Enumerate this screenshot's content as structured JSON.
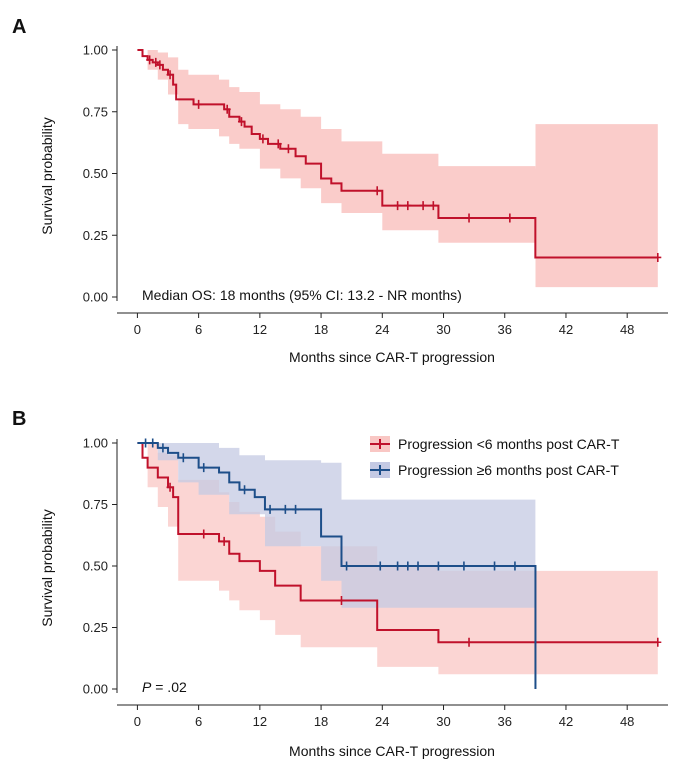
{
  "colors": {
    "red": "#c0112b",
    "red_ci": "#f9c7c4",
    "blue": "#1d4e89",
    "blue_ci": "#c4c9e3",
    "axis": "#222222"
  },
  "chart_data": [
    {
      "panel": "A",
      "type": "line",
      "xlabel": "Months since CAR-T progression",
      "ylabel": "Survival probability",
      "xlim": [
        -2,
        52
      ],
      "ylim": [
        0,
        1
      ],
      "xticks": [
        0,
        6,
        12,
        18,
        24,
        30,
        36,
        42,
        48
      ],
      "yticks": [
        0.0,
        0.25,
        0.5,
        0.75,
        1.0
      ],
      "ytick_labels": [
        "0.00",
        "0.25",
        "0.50",
        "0.75",
        "1.00"
      ],
      "annotation": "Median OS: 18 months (95% CI: 13.2 - NR months)",
      "series": [
        {
          "color": "red",
          "steps": [
            [
              0,
              1.0
            ],
            [
              0.5,
              0.975
            ],
            [
              1.0,
              0.96
            ],
            [
              1.5,
              0.95
            ],
            [
              2.0,
              0.94
            ],
            [
              2.5,
              0.92
            ],
            [
              3.0,
              0.9
            ],
            [
              3.5,
              0.86
            ],
            [
              3.8,
              0.8
            ],
            [
              5.5,
              0.78
            ],
            [
              8.5,
              0.76
            ],
            [
              9.0,
              0.73
            ],
            [
              10.0,
              0.71
            ],
            [
              10.5,
              0.69
            ],
            [
              11.2,
              0.66
            ],
            [
              12.0,
              0.64
            ],
            [
              12.8,
              0.62
            ],
            [
              14.0,
              0.6
            ],
            [
              15.5,
              0.57
            ],
            [
              16.5,
              0.54
            ],
            [
              18.0,
              0.48
            ],
            [
              19.0,
              0.46
            ],
            [
              20.0,
              0.43
            ],
            [
              24.0,
              0.37
            ],
            [
              29.5,
              0.32
            ],
            [
              39.0,
              0.16
            ],
            [
              51.0,
              0.16
            ]
          ],
          "ci_upper": [
            [
              0,
              1.0
            ],
            [
              1,
              1.0
            ],
            [
              2,
              0.99
            ],
            [
              3,
              0.97
            ],
            [
              4,
              0.92
            ],
            [
              5,
              0.9
            ],
            [
              8,
              0.88
            ],
            [
              9,
              0.85
            ],
            [
              10,
              0.83
            ],
            [
              12,
              0.78
            ],
            [
              14,
              0.76
            ],
            [
              16,
              0.73
            ],
            [
              18,
              0.68
            ],
            [
              20,
              0.63
            ],
            [
              24,
              0.58
            ],
            [
              29.5,
              0.53
            ],
            [
              39,
              0.52
            ],
            [
              39.01,
              0.7
            ],
            [
              51,
              0.7
            ]
          ],
          "ci_lower": [
            [
              0,
              1.0
            ],
            [
              1,
              0.92
            ],
            [
              2,
              0.88
            ],
            [
              3,
              0.82
            ],
            [
              4,
              0.7
            ],
            [
              5,
              0.68
            ],
            [
              8,
              0.65
            ],
            [
              9,
              0.62
            ],
            [
              10,
              0.6
            ],
            [
              12,
              0.52
            ],
            [
              14,
              0.48
            ],
            [
              16,
              0.44
            ],
            [
              18,
              0.38
            ],
            [
              20,
              0.34
            ],
            [
              24,
              0.27
            ],
            [
              29.5,
              0.22
            ],
            [
              39,
              0.21
            ],
            [
              39.01,
              0.04
            ],
            [
              51,
              0.04
            ]
          ],
          "censor": [
            1.2,
            1.8,
            2.2,
            3.2,
            6.0,
            8.8,
            10.2,
            12.3,
            13.8,
            14.8,
            23.5,
            25.5,
            26.5,
            28.0,
            29.0,
            32.5,
            36.5,
            51.0
          ]
        }
      ]
    },
    {
      "panel": "B",
      "type": "line",
      "xlabel": "Months since CAR-T progression",
      "ylabel": "Survival probability",
      "xlim": [
        -2,
        52
      ],
      "ylim": [
        0,
        1
      ],
      "xticks": [
        0,
        6,
        12,
        18,
        24,
        30,
        36,
        42,
        48
      ],
      "yticks": [
        0.0,
        0.25,
        0.5,
        0.75,
        1.0
      ],
      "ytick_labels": [
        "0.00",
        "0.25",
        "0.50",
        "0.75",
        "1.00"
      ],
      "annotation_italic": "P",
      "annotation_rest": " = .02",
      "legend_position": "top-right",
      "series": [
        {
          "name": "Progression <6 months post CAR-T",
          "color": "red",
          "steps": [
            [
              0,
              1.0
            ],
            [
              0.5,
              0.94
            ],
            [
              1.0,
              0.9
            ],
            [
              2.0,
              0.86
            ],
            [
              3.0,
              0.82
            ],
            [
              3.5,
              0.78
            ],
            [
              4.0,
              0.63
            ],
            [
              8.0,
              0.6
            ],
            [
              9.0,
              0.55
            ],
            [
              10.0,
              0.52
            ],
            [
              12.0,
              0.48
            ],
            [
              13.5,
              0.42
            ],
            [
              16.0,
              0.36
            ],
            [
              20.0,
              0.36
            ],
            [
              23.5,
              0.24
            ],
            [
              29.5,
              0.19
            ],
            [
              51.0,
              0.19
            ]
          ],
          "ci_upper": [
            [
              0,
              1.0
            ],
            [
              1,
              1.0
            ],
            [
              2,
              0.96
            ],
            [
              3,
              0.95
            ],
            [
              4,
              0.85
            ],
            [
              8,
              0.8
            ],
            [
              9,
              0.76
            ],
            [
              10,
              0.72
            ],
            [
              12,
              0.7
            ],
            [
              13.5,
              0.64
            ],
            [
              16,
              0.58
            ],
            [
              20,
              0.58
            ],
            [
              23.5,
              0.5
            ],
            [
              29.5,
              0.48
            ],
            [
              51,
              0.48
            ]
          ],
          "ci_lower": [
            [
              0,
              1.0
            ],
            [
              1,
              0.82
            ],
            [
              2,
              0.74
            ],
            [
              3,
              0.66
            ],
            [
              4,
              0.44
            ],
            [
              8,
              0.4
            ],
            [
              9,
              0.36
            ],
            [
              10,
              0.32
            ],
            [
              12,
              0.28
            ],
            [
              13.5,
              0.22
            ],
            [
              16,
              0.17
            ],
            [
              20,
              0.17
            ],
            [
              23.5,
              0.09
            ],
            [
              29.5,
              0.06
            ],
            [
              51,
              0.06
            ]
          ],
          "censor": [
            3.2,
            6.5,
            8.5,
            20.0,
            32.5,
            51.0
          ]
        },
        {
          "name": "Progression ≥6 months post CAR-T",
          "color": "blue",
          "steps": [
            [
              0,
              1.0
            ],
            [
              2.0,
              0.98
            ],
            [
              3.0,
              0.96
            ],
            [
              4.0,
              0.94
            ],
            [
              6.0,
              0.9
            ],
            [
              8.0,
              0.88
            ],
            [
              9.0,
              0.84
            ],
            [
              10.0,
              0.81
            ],
            [
              11.5,
              0.78
            ],
            [
              12.5,
              0.73
            ],
            [
              18.0,
              0.62
            ],
            [
              20.0,
              0.5
            ],
            [
              39.0,
              0.5
            ],
            [
              39.01,
              0.0
            ]
          ],
          "ci_upper": [
            [
              0,
              1.0
            ],
            [
              4,
              1.0
            ],
            [
              8,
              0.98
            ],
            [
              10,
              0.95
            ],
            [
              12.5,
              0.93
            ],
            [
              18,
              0.92
            ],
            [
              20,
              0.77
            ],
            [
              39,
              0.77
            ]
          ],
          "ci_lower": [
            [
              0,
              1.0
            ],
            [
              2,
              0.93
            ],
            [
              4,
              0.84
            ],
            [
              6,
              0.79
            ],
            [
              9,
              0.71
            ],
            [
              12.5,
              0.58
            ],
            [
              18,
              0.44
            ],
            [
              20,
              0.33
            ],
            [
              39,
              0.33
            ]
          ],
          "censor": [
            0.8,
            1.5,
            2.5,
            4.5,
            6.5,
            10.5,
            13.0,
            14.5,
            15.5,
            20.5,
            23.8,
            25.5,
            26.5,
            27.5,
            29.5,
            32.0,
            35.0,
            37.0
          ]
        }
      ]
    }
  ]
}
